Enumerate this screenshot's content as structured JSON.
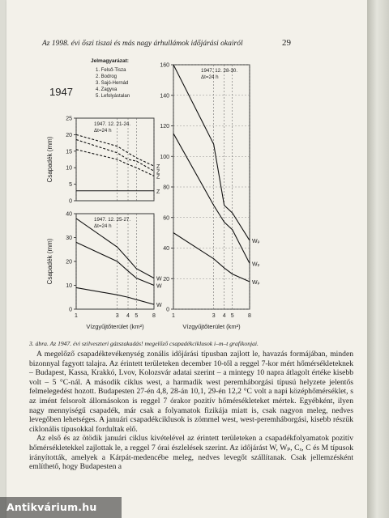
{
  "header": {
    "title": "Az 1998. évi őszi tiszai és más nagy árhullámok időjárási okairól",
    "page_number": "29"
  },
  "figure": {
    "year_label": "1947",
    "legend_title": "Jelmagyarázat:",
    "legend_items": [
      "1. Felső-Tisza",
      "2. Bodrog",
      "3. Sajó-Hernád",
      "4. Zagyva",
      "5. Lefolyástalan"
    ],
    "shared_x_ticks": [
      1,
      3,
      4,
      5,
      8
    ],
    "charts": [
      {
        "panel": "top-left",
        "annotation": [
          "1947. 12. 21-24.",
          "Δt=24 h"
        ],
        "ylabel": "Csapadék (mm)",
        "ylim": [
          0,
          25
        ],
        "yticks": [
          0,
          5,
          10,
          15,
          20,
          25
        ],
        "series": [
          {
            "label": "Z",
            "x": [
              1,
              3,
              4,
              5,
              8
            ],
            "y": [
              20,
              16.5,
              14.5,
              13,
              10.5
            ]
          },
          {
            "label": "Z",
            "x": [
              1,
              3,
              4,
              5,
              8
            ],
            "y": [
              18.5,
              14.5,
              12.5,
              12,
              9
            ]
          },
          {
            "label": "Z",
            "x": [
              1,
              3,
              4,
              5,
              8
            ],
            "y": [
              15.5,
              12.5,
              11,
              10,
              7.5
            ]
          },
          {
            "label": "Z",
            "x": [
              1,
              3,
              4,
              5,
              8
            ],
            "y": [
              3,
              3,
              3,
              3,
              3
            ]
          }
        ]
      },
      {
        "panel": "bottom-left",
        "annotation": [
          "1947. 12. 25-27.",
          "Δt=24 h"
        ],
        "ylabel": "Csapadék (mm)",
        "xlabel": "Vízgyűjtőterület (km²)",
        "ylim": [
          0,
          40
        ],
        "yticks": [
          0,
          10,
          20,
          30,
          40
        ],
        "series": [
          {
            "label": "W",
            "x": [
              1,
              3,
              4,
              5,
              8
            ],
            "y": [
              38,
              26,
              21,
              17,
              13
            ]
          },
          {
            "label": "W",
            "x": [
              1,
              3,
              4,
              5,
              8
            ],
            "y": [
              28,
              20,
              16,
              13,
              10
            ]
          },
          {
            "label": "W",
            "x": [
              1,
              3,
              4,
              5,
              8
            ],
            "y": [
              9,
              6,
              5,
              4,
              2
            ]
          }
        ]
      },
      {
        "panel": "right",
        "annotation": [
          "1947. 12. 28-30.",
          "Δt=24 h"
        ],
        "xlabel": "Vízgyűjtőterület (km²)",
        "ylim": [
          0,
          160
        ],
        "yticks": [
          0,
          20,
          40,
          60,
          80,
          100,
          120,
          140,
          160
        ],
        "series": [
          {
            "label": "Wₚ",
            "x": [
              1,
              3,
              4,
              5,
              8
            ],
            "y": [
              160,
              108,
              68,
              63,
              45
            ]
          },
          {
            "label": "Wₚ",
            "x": [
              1,
              3,
              4,
              5,
              8
            ],
            "y": [
              115,
              68,
              57,
              52,
              30
            ]
          },
          {
            "label": "Wₚ",
            "x": [
              1,
              3,
              4,
              5,
              8
            ],
            "y": [
              50,
              33,
              27,
              23,
              18
            ]
          }
        ]
      }
    ]
  },
  "caption": "3. ábra. Az 1947. évi szilveszteri gázszakadás! megelőző csapadékciklusok i–m–t grafikonjai.",
  "body_paragraphs": [
    "A megelőző csapadéktevékenység zonális időjárási típusban zajlott le, havazás formájában, minden bizonnyal fagyott talajra. Az érintett területeken december 10-től a reggel 7-kor mért hőmérsékleteknek – Budapest, Kassa, Krakkó, Lvov, Kolozsvár adatai szerint – a mintegy 10 napra átlagolt értéke kisebb volt – 5 °C-nál. A második ciklus west, a harmadik west peremháborgási típusú helyzete jelentős felmelegedést hozott. Budapesten 27-én 4,8, 28-án 10,1, 29-én 12,2 °C volt a napi középhőmérséklet, s az imént felsorolt állomásokon is reggel 7 órakor pozitív hőmérsékleteket mértek. Egyébként, ilyen nagy mennyiségű csapadék, már csak a folyamatok fizikája miatt is, csak nagyon meleg, nedves levegőben lehetséges. A januári csapadékciklusok is zömmel west, west-peremháborgási, kisebb részük ciklonális típusokkal fordultak elő.",
    "Az első és az ötödik januári ciklus kivételével az érintett területeken a csapadékfolyamatok pozitív hőmérsékletekkel zajlottak le, a reggel 7 órai észlelések szerint. Az időjárást W, Wₚ, Cₓ, C és M típusok irányították, amelyek a Kárpát-medencébe meleg, nedves levegőt szállítanak. Csak jellemzésként említhető, hogy Budapesten a"
  ],
  "watermark": "Antikvárium.hu"
}
